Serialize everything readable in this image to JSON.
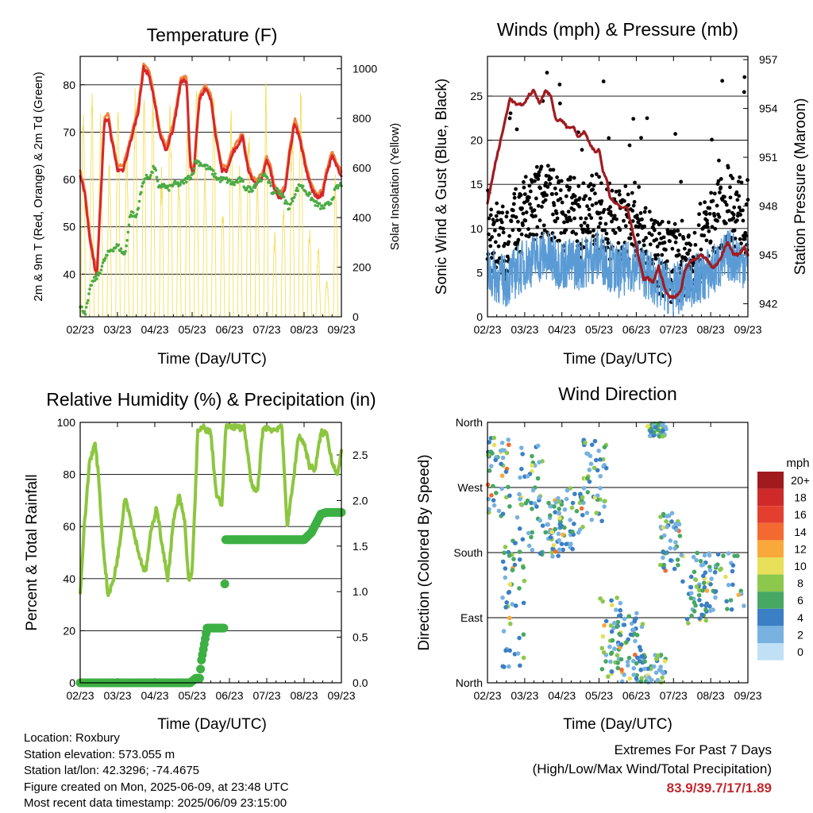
{
  "colors": {
    "temp_2m": "#d8272b",
    "temp_9m": "#f0843c",
    "dewpoint": "#4cab45",
    "solar": "#f5de5a",
    "wind": "#5b9bd5",
    "gust": "#000000",
    "pressure": "#a01c22",
    "rh": "#8cc63f",
    "precip": "#3cb043"
  },
  "wind_speed_colorbar": {
    "unit": "mph",
    "labels": [
      "20+",
      "18",
      "16",
      "14",
      "12",
      "10",
      "8",
      "6",
      "4",
      "2",
      "0"
    ],
    "colors": [
      "#a11a1e",
      "#cf2a2a",
      "#e43f2e",
      "#f26a30",
      "#f9a83c",
      "#e8df5a",
      "#8cc84b",
      "#46a862",
      "#3b7fc4",
      "#77b2e0",
      "#bfe0f5"
    ]
  },
  "info": {
    "location": "Location: Roxbury",
    "elevation": "Station elevation: 573.055 m",
    "latlon": "Station lat/lon: 42.3296; -74.4675",
    "created": "Figure created on Mon, 2025-06-09, at 23:48 UTC",
    "recent": "Most recent data timestamp: 2025/06/09 23:15:00"
  },
  "extremes": {
    "title": "Extremes For Past 7 Days",
    "subtitle": "(High/Low/Max Wind/Total Precipitation)",
    "values": "83.9/39.7/17/1.89"
  },
  "chart_data": [
    {
      "type": "line",
      "id": "temperature",
      "title": "Temperature (F)",
      "xlabel": "Time (Day/UTC)",
      "ylabel": "2m & 9m T (Red, Orange) & 2m Td (Green)",
      "y2label": "Solar Insolation (Yellow)",
      "x_ticks": [
        "02/23",
        "03/23",
        "04/23",
        "05/23",
        "06/23",
        "07/23",
        "08/23",
        "09/23"
      ],
      "xlim": [
        0,
        7
      ],
      "ylim": [
        31,
        86
      ],
      "y_ticks": [
        40,
        50,
        60,
        70,
        80
      ],
      "y2lim": [
        0,
        1050
      ],
      "y2_ticks": [
        0,
        200,
        400,
        600,
        800,
        1000
      ],
      "grid": true,
      "series": [
        {
          "key": "temp_2m",
          "x": [
            0,
            0.12,
            0.25,
            0.4,
            0.45,
            0.55,
            0.65,
            0.75,
            0.85,
            1.0,
            1.15,
            1.35,
            1.55,
            1.7,
            1.85,
            2.0,
            2.15,
            2.3,
            2.5,
            2.7,
            2.85,
            2.95,
            3.05,
            3.12,
            3.2,
            3.35,
            3.5,
            3.65,
            3.8,
            3.95,
            4.05,
            4.2,
            4.35,
            4.5,
            4.6,
            4.75,
            4.9,
            5.0,
            5.1,
            5.2,
            5.35,
            5.5,
            5.6,
            5.75,
            5.9,
            6.05,
            6.2,
            6.35,
            6.5,
            6.6,
            6.75,
            6.85,
            7.0
          ],
          "y": [
            61,
            57,
            48,
            41,
            40,
            56,
            72,
            73,
            68,
            62,
            62,
            68,
            74,
            83.5,
            82,
            76,
            69,
            66,
            71,
            80.5,
            81,
            63,
            61,
            70,
            77,
            79,
            77,
            68,
            62,
            62,
            65,
            67,
            69,
            62,
            60,
            59,
            61,
            64,
            62,
            58,
            56,
            58,
            65,
            72,
            68,
            62,
            58,
            56,
            57,
            61,
            65,
            63,
            61
          ]
        },
        {
          "key": "dewpoint",
          "x": [
            0,
            0.15,
            0.3,
            0.5,
            0.65,
            0.8,
            1.0,
            1.2,
            1.35,
            1.5,
            1.7,
            1.9,
            2.0,
            2.1,
            2.2,
            2.35,
            2.5,
            2.7,
            2.85,
            3.0,
            3.1,
            3.3,
            3.5,
            3.7,
            3.9,
            4.1,
            4.3,
            4.45,
            4.6,
            4.8,
            5.0,
            5.15,
            5.3,
            5.45,
            5.6,
            5.75,
            5.9,
            6.1,
            6.3,
            6.5,
            6.7,
            6.85,
            7.0
          ],
          "y": [
            33,
            32,
            38,
            40,
            43,
            45,
            46,
            44,
            53,
            52,
            60,
            61,
            63,
            58,
            59,
            58,
            59,
            59,
            60,
            61,
            64,
            63,
            62,
            60,
            60,
            59,
            60,
            58,
            58,
            60,
            61,
            57,
            58,
            56,
            54,
            57,
            59,
            57,
            55,
            54,
            55,
            58,
            59
          ]
        },
        {
          "key": "pressure",
          "x": [
            0,
            0.2,
            0.4,
            0.6,
            0.8,
            1.0,
            1.1,
            1.25,
            1.4,
            1.55,
            1.7,
            1.85,
            2.0,
            2.15,
            2.3,
            2.45,
            2.6,
            2.75,
            2.9,
            3.0,
            3.1,
            3.2,
            3.3,
            3.45,
            3.6,
            3.75,
            3.9,
            4.0,
            4.1,
            4.2,
            4.3,
            4.45,
            4.6,
            4.75,
            4.9,
            5.05,
            5.2,
            5.3,
            5.45,
            5.6,
            5.75,
            5.9,
            6.05,
            6.2,
            6.3,
            6.45,
            6.6,
            6.75,
            6.9,
            7.0
          ],
          "y": [
            948.2,
            950.5,
            952.5,
            954.6,
            954.2,
            954.3,
            954.8,
            955.1,
            954.3,
            955.1,
            954.8,
            953.2,
            953.3,
            952.8,
            952.9,
            952.2,
            952.6,
            951.8,
            951.3,
            951.5,
            950.2,
            949.7,
            948.5,
            948.2,
            947.9,
            948.0,
            946.5,
            945.5,
            944.5,
            943.5,
            943.6,
            943.3,
            944.3,
            943.0,
            942.4,
            942.4,
            942.8,
            944.0,
            944.6,
            944.7,
            945.0,
            944.7,
            944.2,
            944.5,
            945.0,
            945.8,
            945.1,
            945.0,
            945.5,
            945.0
          ]
        }
      ]
    },
    {
      "type": "scatter",
      "id": "winds",
      "title": "Winds (mph) & Pressure (mb)",
      "xlabel": "Time (Day/UTC)",
      "ylabel": "Sonic Wind & Gust (Blue, Black)",
      "y2label": "Station Pressure (Maroon)",
      "x_ticks": [
        "02/23",
        "03/23",
        "04/23",
        "05/23",
        "06/23",
        "07/23",
        "08/23",
        "09/23"
      ],
      "xlim": [
        0,
        7
      ],
      "ylim": [
        0,
        29.5
      ],
      "y_ticks": [
        0,
        5,
        10,
        15,
        20,
        25
      ],
      "y2lim": [
        941.2,
        957.2
      ],
      "y2_ticks": [
        942,
        945,
        948,
        951,
        954,
        957
      ],
      "grid": true,
      "series": [
        {
          "key": "gust",
          "x": [
            0,
            0.5,
            1.0,
            1.5,
            2.0,
            2.5,
            3.0,
            3.5,
            4.0,
            4.5,
            5.0,
            5.5,
            6.0,
            6.5,
            7.0
          ],
          "y": [
            10,
            8,
            12,
            13,
            12,
            11,
            12,
            10,
            11,
            7,
            6,
            7,
            10,
            13,
            11
          ]
        },
        {
          "key": "wind",
          "x": [
            0,
            0.5,
            1.0,
            1.5,
            2.0,
            2.5,
            3.0,
            3.5,
            4.0,
            4.5,
            5.0,
            5.5,
            6.0,
            6.5,
            7.0
          ],
          "y": [
            5,
            4,
            6,
            7,
            6,
            6,
            7,
            5,
            6,
            4,
            3,
            4,
            5,
            7,
            6
          ]
        }
      ]
    },
    {
      "type": "line",
      "id": "humidity",
      "title": "Relative Humidity (%) & Precipitation (in)",
      "xlabel": "Time (Day/UTC)",
      "ylabel": "Percent & Total Rainfall",
      "x_ticks": [
        "02/23",
        "03/23",
        "04/23",
        "05/23",
        "06/23",
        "07/23",
        "08/23",
        "09/23"
      ],
      "xlim": [
        0,
        7
      ],
      "ylim": [
        0,
        100
      ],
      "y_ticks": [
        0,
        20,
        40,
        60,
        80,
        100
      ],
      "y2lim": [
        0,
        2.857
      ],
      "y2_ticks": [
        0.0,
        0.5,
        1.0,
        1.5,
        2.0,
        2.5
      ],
      "grid": true,
      "series": [
        {
          "key": "rh",
          "x": [
            0,
            0.1,
            0.25,
            0.4,
            0.5,
            0.6,
            0.75,
            0.9,
            1.05,
            1.2,
            1.4,
            1.6,
            1.75,
            1.9,
            2.05,
            2.2,
            2.35,
            2.5,
            2.65,
            2.8,
            2.9,
            3.0,
            3.15,
            3.3,
            3.5,
            3.65,
            3.8,
            3.9,
            4.0,
            4.2,
            4.4,
            4.6,
            4.75,
            4.9,
            5.0,
            5.2,
            5.4,
            5.55,
            5.7,
            5.85,
            6.0,
            6.15,
            6.3,
            6.45,
            6.6,
            6.75,
            6.9,
            7.0
          ],
          "y": [
            34,
            58,
            85,
            92,
            78,
            55,
            33,
            40,
            52,
            72,
            60,
            48,
            42,
            58,
            68,
            52,
            40,
            62,
            72,
            62,
            40,
            42,
            96,
            98,
            96,
            72,
            68,
            98,
            99,
            98,
            98,
            75,
            73,
            98,
            98,
            97,
            99,
            60,
            76,
            95,
            92,
            83,
            82,
            96,
            96,
            85,
            80,
            88
          ]
        },
        {
          "key": "precip",
          "x": [
            0,
            1.0,
            2.0,
            2.95,
            3.1,
            3.2,
            3.25,
            3.4,
            3.7,
            3.85,
            3.9,
            4.0,
            4.5,
            6.0,
            6.2,
            6.45,
            6.6,
            7.0
          ],
          "y": [
            0.0,
            0.0,
            0.0,
            0.0,
            0.05,
            0.05,
            0.25,
            0.6,
            0.6,
            0.6,
            1.57,
            1.57,
            1.57,
            1.57,
            1.65,
            1.85,
            1.87,
            1.87
          ]
        }
      ]
    },
    {
      "type": "scatter",
      "id": "direction",
      "title": "Wind Direction",
      "xlabel": "Time (Day/UTC)",
      "ylabel": "Direction (Colored By Speed)",
      "x_ticks": [
        "02/23",
        "03/23",
        "04/23",
        "05/23",
        "06/23",
        "07/23",
        "08/23",
        "09/23"
      ],
      "xlim": [
        0,
        7
      ],
      "ylim": [
        0,
        360
      ],
      "y_tick_labels": [
        "North",
        "East",
        "South",
        "West",
        "North"
      ],
      "y_ticks": [
        0,
        90,
        180,
        270,
        360
      ],
      "grid": true,
      "clusters": [
        {
          "x": [
            0,
            0.6
          ],
          "y": [
            230,
            340
          ]
        },
        {
          "x": [
            0.4,
            1.0
          ],
          "y": [
            20,
            200
          ]
        },
        {
          "x": [
            0.8,
            1.5
          ],
          "y": [
            170,
            340
          ]
        },
        {
          "x": [
            1.4,
            2.0
          ],
          "y": [
            170,
            260
          ]
        },
        {
          "x": [
            1.9,
            2.6
          ],
          "y": [
            180,
            270
          ]
        },
        {
          "x": [
            2.5,
            3.2
          ],
          "y": [
            220,
            340
          ]
        },
        {
          "x": [
            3.0,
            3.6
          ],
          "y": [
            0,
            120
          ]
        },
        {
          "x": [
            3.5,
            4.2
          ],
          "y": [
            0,
            100
          ]
        },
        {
          "x": [
            4.0,
            4.8
          ],
          "y": [
            0,
            40
          ]
        },
        {
          "x": [
            4.3,
            4.8
          ],
          "y": [
            340,
            360
          ]
        },
        {
          "x": [
            4.6,
            5.2
          ],
          "y": [
            150,
            240
          ]
        },
        {
          "x": [
            5.2,
            6.0
          ],
          "y": [
            80,
            180
          ]
        },
        {
          "x": [
            5.6,
            6.9
          ],
          "y": [
            100,
            180
          ]
        }
      ]
    }
  ]
}
